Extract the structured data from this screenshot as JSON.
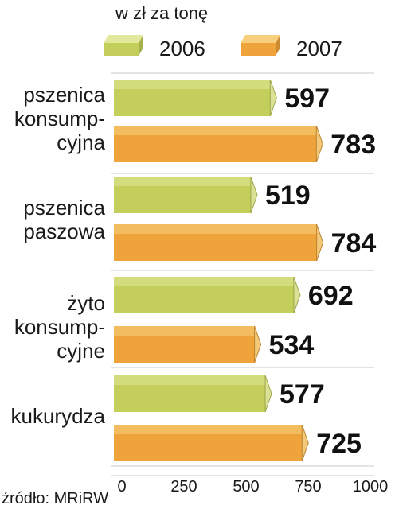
{
  "chart_data": {
    "type": "bar",
    "orientation": "horizontal",
    "title": "w zł za tonę",
    "categories": [
      "pszenica\nkonsump-\ncyjna",
      "pszenica\npaszowa",
      "żyto\nkonsump-\ncyjne",
      "kukurydza"
    ],
    "series": [
      {
        "name": "2006",
        "values": [
          597,
          519,
          692,
          577
        ],
        "color": "#c3cf5a",
        "top_color": "#e2e99c"
      },
      {
        "name": "2007",
        "values": [
          783,
          784,
          534,
          725
        ],
        "color": "#eea43a",
        "top_color": "#f8cf7c"
      }
    ],
    "xlim": [
      0,
      1000
    ],
    "xticks": [
      0,
      250,
      500,
      750,
      1000
    ],
    "grid": true,
    "legend_position": "top",
    "source": "źródło: MRiRW"
  }
}
